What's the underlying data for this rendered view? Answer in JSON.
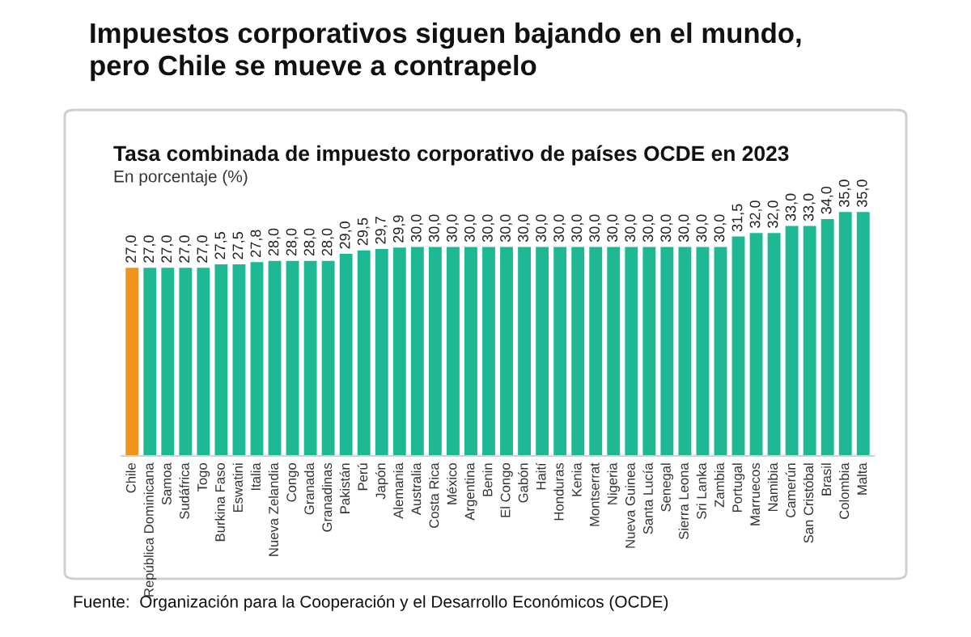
{
  "chart_data": {
    "type": "bar",
    "title": "Impuestos corporativos siguen bajando en el mundo,\npero Chile se mueve a contrapelo",
    "subtitle": "Tasa combinada de impuesto corporativo de países OCDE en 2023",
    "annotations": [
      "En porcentaje (%)",
      "Fuente:  Organización para la Cooperación y el Desarrollo Económicos (OCDE)"
    ],
    "categories": [
      "Chile",
      "República Dominicana",
      "Samoa",
      "Sudáfrica",
      "Togo",
      "Burkina Faso",
      "Eswatini",
      "Italia",
      "Nueva Zelandia",
      "Congo",
      "Granada",
      "Granadinas",
      "Pakistán",
      "Perú",
      "Japón",
      "Alemania",
      "Australia",
      "Costa Rica",
      "México",
      "Argentina",
      "Benin",
      "El Congo",
      "Gabón",
      "Haití",
      "Honduras",
      "Kenia",
      "Montserrat",
      "Nigeria",
      "Nueva Guinea",
      "Santa Lucía",
      "Senegal",
      "Sierra Leona",
      "Sri Lanka",
      "Zambia",
      "Portugal",
      "Marruecos",
      "Namibia",
      "Camerún",
      "San Cristóbal",
      "Brasil",
      "Colombia",
      "Malta"
    ],
    "values": [
      27.0,
      27.0,
      27.0,
      27.0,
      27.0,
      27.5,
      27.5,
      27.8,
      28.0,
      28.0,
      28.0,
      28.0,
      29.0,
      29.5,
      29.7,
      29.9,
      30.0,
      30.0,
      30.0,
      30.0,
      30.0,
      30.0,
      30.0,
      30.0,
      30.0,
      30.0,
      30.0,
      30.0,
      30.0,
      30.0,
      30.0,
      30.0,
      30.0,
      30.0,
      31.5,
      32.0,
      32.0,
      33.0,
      33.0,
      34.0,
      35.0,
      35.0
    ],
    "value_labels": [
      "27,0",
      "27,0",
      "27,0",
      "27,0",
      "27,0",
      "27,5",
      "27,5",
      "27,8",
      "28,0",
      "28,0",
      "28,0",
      "28,0",
      "29,0",
      "29,5",
      "29,7",
      "29,9",
      "30,0",
      "30,0",
      "30,0",
      "30,0",
      "30,0",
      "30,0",
      "30,0",
      "30,0",
      "30,0",
      "30,0",
      "30,0",
      "30,0",
      "30,0",
      "30,0",
      "30,0",
      "30,0",
      "30,0",
      "30,0",
      "31,5",
      "32,0",
      "32,0",
      "33,0",
      "33,0",
      "34,0",
      "35,0",
      "35,0"
    ],
    "colors": [
      "#f0921e",
      "#1fb894",
      "#1fb894",
      "#1fb894",
      "#1fb894",
      "#1fb894",
      "#1fb894",
      "#1fb894",
      "#1fb894",
      "#1fb894",
      "#1fb894",
      "#1fb894",
      "#1fb894",
      "#1fb894",
      "#1fb894",
      "#1fb894",
      "#1fb894",
      "#1fb894",
      "#1fb894",
      "#1fb894",
      "#1fb894",
      "#1fb894",
      "#1fb894",
      "#1fb894",
      "#1fb894",
      "#1fb894",
      "#1fb894",
      "#1fb894",
      "#1fb894",
      "#1fb894",
      "#1fb894",
      "#1fb894",
      "#1fb894",
      "#1fb894",
      "#1fb894",
      "#1fb894",
      "#1fb894",
      "#1fb894",
      "#1fb894",
      "#1fb894",
      "#1fb894",
      "#1fb894"
    ],
    "grid": false,
    "legend": false
  }
}
